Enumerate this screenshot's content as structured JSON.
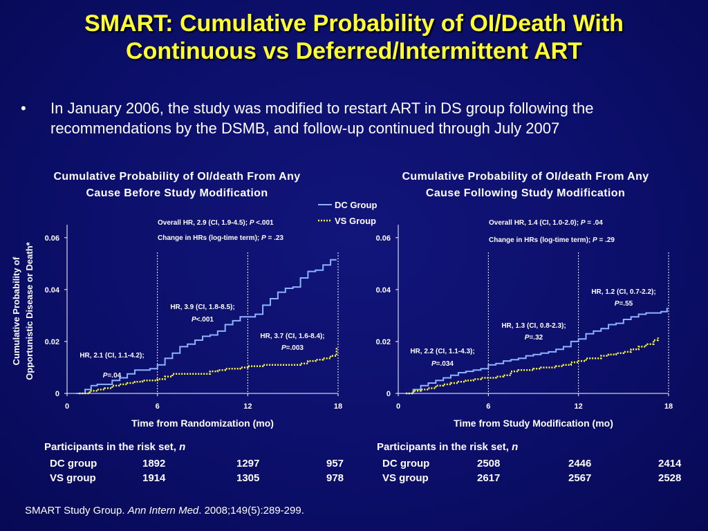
{
  "title": {
    "line1": "SMART: Cumulative Probability of OI/Death With",
    "line2": "Continuous vs Deferred/Intermittent ART"
  },
  "bullet": {
    "marker": "•",
    "text": "In January 2006, the study was modified to restart ART in DS group following the recommendations by the DSMB, and follow-up continued through July 2007"
  },
  "legend": {
    "dc": "DC Group",
    "vs": "VS Group"
  },
  "y_axis_label": [
    "Cumulative Probability of",
    "Opportunistic Disease or Death*"
  ],
  "colors": {
    "dc": "#8cb4ff",
    "vs": "#ffff33",
    "background": "#0c0f6a",
    "title": "#ffff33"
  },
  "chart_data": [
    {
      "type": "line",
      "title": "Cumulative Probability of OI/death From Any Cause Before Study Modification",
      "title_lines": [
        "Cumulative Probability of OI/death From Any",
        "Cause Before Study Modification"
      ],
      "xlabel": "Time from Randomization (mo)",
      "ylabel": "Cumulative Probability of Opportunistic Disease or Death*",
      "xlim": [
        0,
        18
      ],
      "ylim": [
        0,
        0.065
      ],
      "xticks": [
        "0",
        "6",
        "12",
        "18"
      ],
      "yticks": [
        "0",
        "0.02",
        "0.04",
        "0.06"
      ],
      "ytick_values": [
        0,
        0.02,
        0.04,
        0.06
      ],
      "vlines": [
        6,
        12,
        18
      ],
      "annotations": {
        "overall_hr_prefix": "Overall HR, 2.9 (CI, 1.9-4.5); ",
        "overall_hr_p": "P",
        "overall_hr_suffix": " <.001",
        "change_prefix": "Change in HRs (log-time term); ",
        "change_p": "P",
        "change_suffix": " = .23",
        "seg1_line1": "HR, 2.1 (CI, 1.1-4.2);",
        "seg1_p": "P",
        "seg1_val": "=.04",
        "seg2_line1": "HR, 3.9 (CI, 1.8-8.5);",
        "seg2_p": "P",
        "seg2_val": "<.001",
        "seg3_line1": "HR, 3.7 (CI, 1.6-8.4);",
        "seg3_p": "P",
        "seg3_val": "=.003"
      },
      "series": [
        {
          "name": "DC Group",
          "x": [
            0.6,
            1.2,
            1.6,
            2.0,
            2.5,
            3.0,
            3.5,
            4.0,
            4.5,
            5.0,
            5.5,
            6.0,
            6.5,
            7.0,
            7.5,
            8.0,
            8.5,
            9.0,
            9.5,
            10.0,
            10.5,
            11.0,
            11.5,
            12.0,
            12.5,
            13.0,
            13.5,
            14.0,
            14.5,
            15.0,
            15.5,
            16.0,
            16.5,
            17.0,
            17.5,
            17.9
          ],
          "y": [
            0.0,
            0.0015,
            0.003,
            0.0035,
            0.0035,
            0.005,
            0.006,
            0.0075,
            0.009,
            0.009,
            0.0095,
            0.011,
            0.0135,
            0.0155,
            0.018,
            0.019,
            0.0205,
            0.022,
            0.0225,
            0.024,
            0.0265,
            0.028,
            0.0295,
            0.0295,
            0.0305,
            0.034,
            0.0365,
            0.039,
            0.0405,
            0.041,
            0.0445,
            0.047,
            0.0475,
            0.0495,
            0.0515,
            0.0515
          ]
        },
        {
          "name": "VS Group",
          "x": [
            0.8,
            1.5,
            2.0,
            2.5,
            3.0,
            3.5,
            4.0,
            4.5,
            5.0,
            5.5,
            6.0,
            6.5,
            7.0,
            7.5,
            8.0,
            8.5,
            9.0,
            9.5,
            10.0,
            10.5,
            11.0,
            11.5,
            12.0,
            12.5,
            13.0,
            13.5,
            14.0,
            14.5,
            15.0,
            15.5,
            16.0,
            16.5,
            17.0,
            17.5,
            17.9
          ],
          "y": [
            0.0,
            0.001,
            0.0015,
            0.002,
            0.003,
            0.0035,
            0.004,
            0.0045,
            0.005,
            0.005,
            0.0055,
            0.0065,
            0.0075,
            0.0075,
            0.0075,
            0.0075,
            0.0075,
            0.0085,
            0.009,
            0.0095,
            0.0095,
            0.01,
            0.0105,
            0.0105,
            0.011,
            0.011,
            0.011,
            0.011,
            0.011,
            0.0115,
            0.0125,
            0.013,
            0.0135,
            0.0145,
            0.0175
          ]
        }
      ],
      "risk_set": {
        "heading": "Participants in the risk set, ",
        "heading_n": "n",
        "dc_label": "DC group",
        "vs_label": "VS group",
        "dc_values": [
          "1892",
          "1297",
          "957"
        ],
        "vs_values": [
          "1914",
          "1305",
          "978"
        ]
      }
    },
    {
      "type": "line",
      "title": "Cumulative Probability of OI/death From Any Cause Following Study Modification",
      "title_lines": [
        "Cumulative Probability of OI/death From Any",
        "Cause Following Study Modification"
      ],
      "xlabel": "Time from Study Modification (mo)",
      "xlim": [
        0,
        18
      ],
      "ylim": [
        0,
        0.065
      ],
      "xticks": [
        "0",
        "6",
        "12",
        "18"
      ],
      "yticks": [
        "0",
        "0.02",
        "0.04",
        "0.06"
      ],
      "ytick_values": [
        0,
        0.02,
        0.04,
        0.06
      ],
      "vlines": [
        6,
        12,
        18
      ],
      "annotations": {
        "overall_hr_prefix": "Overall HR, 1.4 (CI, 1.0-2.0); ",
        "overall_hr_p": "P",
        "overall_hr_suffix": " = .04",
        "change_prefix": "Change in HRs (log-time term); ",
        "change_p": "P",
        "change_suffix": " = .29",
        "seg1_line1": "HR, 2.2 (CI, 1.1-4.3);",
        "seg1_p": "P",
        "seg1_val": "=.034",
        "seg2_line1": "HR, 1.3 (CI, 0.8-2.3);",
        "seg2_p": "P",
        "seg2_val": "=.32",
        "seg3_line1": "HR, 1.2 (CI, 0.7-2.2);",
        "seg3_p": "P",
        "seg3_val": "=.55"
      },
      "series": [
        {
          "name": "DC Group",
          "x": [
            0.5,
            1.0,
            1.5,
            2.0,
            2.5,
            3.0,
            3.5,
            4.0,
            4.5,
            5.0,
            5.5,
            6.0,
            6.5,
            7.0,
            7.5,
            8.0,
            8.5,
            9.0,
            9.5,
            10.0,
            10.5,
            11.0,
            11.5,
            12.0,
            12.5,
            13.0,
            13.5,
            14.0,
            14.5,
            15.0,
            15.5,
            16.0,
            16.5,
            17.0,
            17.5,
            17.9
          ],
          "y": [
            0.0,
            0.0015,
            0.003,
            0.004,
            0.005,
            0.006,
            0.007,
            0.008,
            0.0085,
            0.009,
            0.0095,
            0.011,
            0.0115,
            0.0125,
            0.013,
            0.0135,
            0.0145,
            0.015,
            0.0155,
            0.016,
            0.017,
            0.018,
            0.02,
            0.021,
            0.023,
            0.024,
            0.025,
            0.0265,
            0.027,
            0.0285,
            0.0295,
            0.0305,
            0.031,
            0.031,
            0.0315,
            0.033
          ]
        },
        {
          "name": "VS Group",
          "x": [
            0.5,
            1.0,
            1.5,
            2.0,
            2.5,
            3.0,
            3.5,
            4.0,
            4.5,
            5.0,
            5.5,
            6.0,
            6.5,
            7.0,
            7.5,
            8.0,
            8.5,
            9.0,
            9.5,
            10.0,
            10.5,
            11.0,
            11.5,
            12.0,
            12.5,
            13.0,
            13.5,
            14.0,
            14.5,
            15.0,
            15.5,
            16.0,
            16.5,
            17.0,
            17.3
          ],
          "y": [
            0.0,
            0.001,
            0.0015,
            0.002,
            0.003,
            0.0035,
            0.004,
            0.0045,
            0.005,
            0.0055,
            0.006,
            0.006,
            0.0065,
            0.007,
            0.0085,
            0.009,
            0.009,
            0.0095,
            0.01,
            0.01,
            0.0105,
            0.011,
            0.012,
            0.0125,
            0.0135,
            0.0135,
            0.0145,
            0.015,
            0.0155,
            0.016,
            0.017,
            0.018,
            0.019,
            0.0205,
            0.0215
          ]
        }
      ],
      "risk_set": {
        "heading": "Participants in the risk set, ",
        "heading_n": "n",
        "dc_label": "DC group",
        "vs_label": "VS group",
        "dc_values": [
          "2508",
          "2446",
          "2414"
        ],
        "vs_values": [
          "2617",
          "2567",
          "2528"
        ]
      }
    }
  ],
  "citation": {
    "prefix": "SMART Study Group. ",
    "journal": "Ann Intern Med",
    "suffix": ". 2008;149(5):289-299."
  }
}
